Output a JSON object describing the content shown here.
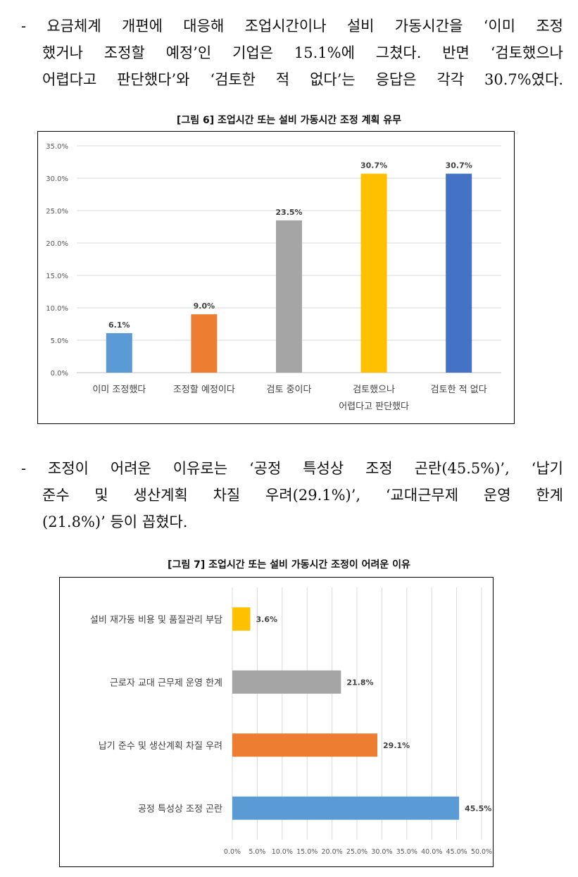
{
  "paragraph1": {
    "lines": [
      "- 요금체계 개편에 대응해 조업시간이나 설비 가동시간을 ‘이미 조정",
      "했거나 조정할 예정’인 기업은 15.1%에 그쳤다. 반면 ‘검토했으나",
      "어렵다고 판단했다’와 ‘검토한 적 없다’는 응답은 각각 30.7%였다."
    ]
  },
  "paragraph2": {
    "lines": [
      "- 조정이 어려운 이유로는 ‘공정 특성상 조정 곤란(45.5%)’, ‘납기",
      "준수 및 생산계획 차질 우려(29.1%)’, ‘교대근무제 운영 한계",
      "(21.8%)’ 등이 꼽혔다."
    ]
  },
  "chart_data": [
    {
      "type": "bar",
      "caption": "[그림 6] 조업시간 또는 설비 가동시간 조정 계획 유무",
      "categories": [
        [
          "이미 조정했다"
        ],
        [
          "조정할 예정이다"
        ],
        [
          "검토 중이다"
        ],
        [
          "검토했으나",
          "어렵다고 판단했다"
        ],
        [
          "검토한 적 없다"
        ]
      ],
      "values": [
        6.1,
        9.0,
        23.5,
        30.7,
        30.7
      ],
      "value_labels": [
        "6.1%",
        "9.0%",
        "23.5%",
        "30.7%",
        "30.7%"
      ],
      "colors": [
        "#5B9BD5",
        "#ED7D31",
        "#A5A5A5",
        "#FFC000",
        "#4472C4"
      ],
      "ylim": [
        0,
        35
      ],
      "ticks": [
        "0.0%",
        "5.0%",
        "10.0%",
        "15.0%",
        "20.0%",
        "25.0%",
        "30.0%",
        "35.0%"
      ],
      "grid": true
    },
    {
      "type": "bar",
      "orientation": "horizontal",
      "caption": "[그림 7] 조업시간 또는 설비 가동시간 조정이 어려운 이유",
      "categories": [
        "설비 재가동 비용 및 품질관리 부담",
        "근로자 교대 근무제 운영 한계",
        "납기 준수 및 생산계획 차질 우려",
        "공정 특성상 조정 곤란"
      ],
      "values": [
        3.6,
        21.8,
        29.1,
        45.5
      ],
      "value_labels": [
        "3.6%",
        "21.8%",
        "29.1%",
        "45.5%"
      ],
      "colors": [
        "#FFC000",
        "#A5A5A5",
        "#ED7D31",
        "#5B9BD5"
      ],
      "xlim": [
        0,
        50
      ],
      "ticks": [
        "0.0%",
        "5.0%",
        "10.0%",
        "15.0%",
        "20.0%",
        "25.0%",
        "30.0%",
        "35.0%",
        "40.0%",
        "45.0%",
        "50.0%"
      ],
      "grid": true
    }
  ]
}
